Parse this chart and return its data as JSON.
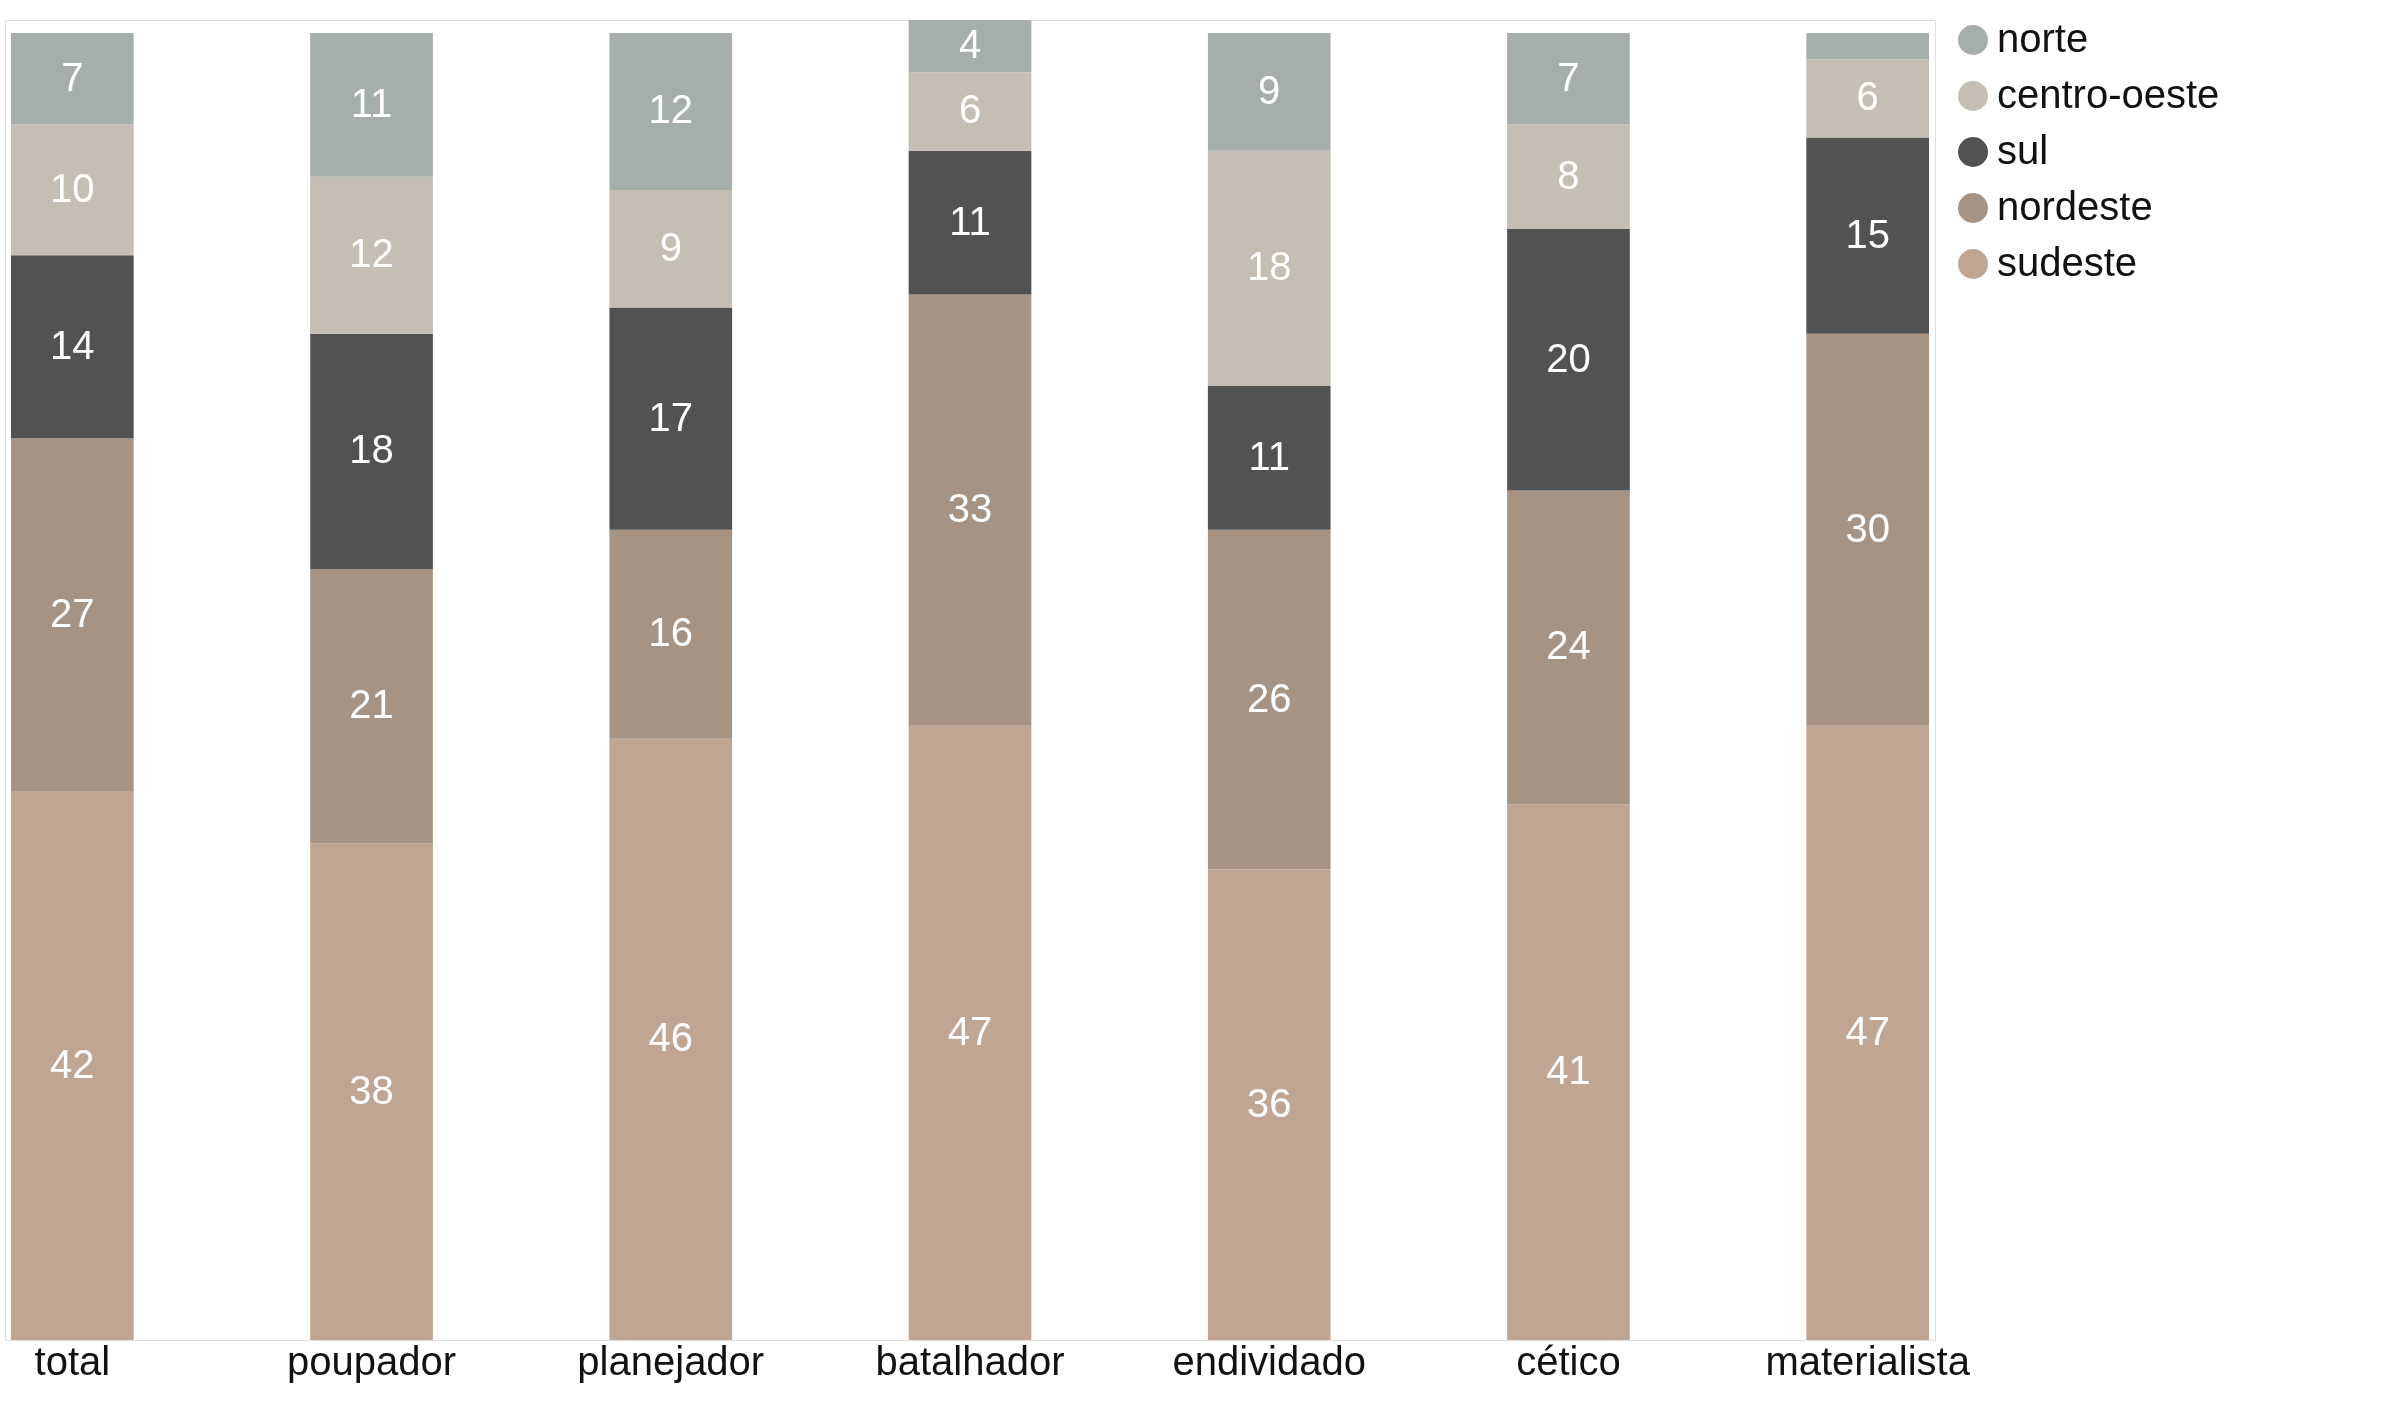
{
  "chart_data": {
    "type": "bar",
    "stacked": true,
    "legend": "top right",
    "grid": false,
    "tick_labels": "x",
    "categories": [
      "total",
      "poupador",
      "planejador",
      "batalhador",
      "endividado",
      "cético",
      "materialista"
    ],
    "series": [
      {
        "name": "sudeste",
        "color": "#bfa592",
        "values": [
          42,
          38,
          46,
          47,
          36,
          41,
          47
        ],
        "value_labels": [
          "42",
          "38",
          "46",
          "47",
          "36",
          "41",
          "47"
        ]
      },
      {
        "name": "nordeste",
        "color": "#a69383",
        "values": [
          27,
          21,
          16,
          33,
          26,
          24,
          30
        ],
        "value_labels": [
          "27",
          "21",
          "16",
          "33",
          "26",
          "24",
          "30"
        ]
      },
      {
        "name": "sul",
        "color": "#525252",
        "values": [
          14,
          18,
          17,
          11,
          11,
          20,
          15
        ],
        "value_labels": [
          "14",
          "18",
          "17",
          "11",
          "11",
          "20",
          "15"
        ]
      },
      {
        "name": "centro-oeste",
        "color": "#c5beb4",
        "values": [
          10,
          12,
          9,
          6,
          18,
          8,
          6
        ],
        "value_labels": [
          "10",
          "12",
          "9",
          "6",
          "18",
          "8",
          "6"
        ]
      },
      {
        "name": "norte",
        "color": "#a5aeab",
        "values": [
          7,
          11,
          12,
          4,
          9,
          7,
          2
        ],
        "value_labels": [
          "7",
          "11",
          "12",
          "4",
          "9",
          "7",
          null
        ]
      }
    ]
  }
}
